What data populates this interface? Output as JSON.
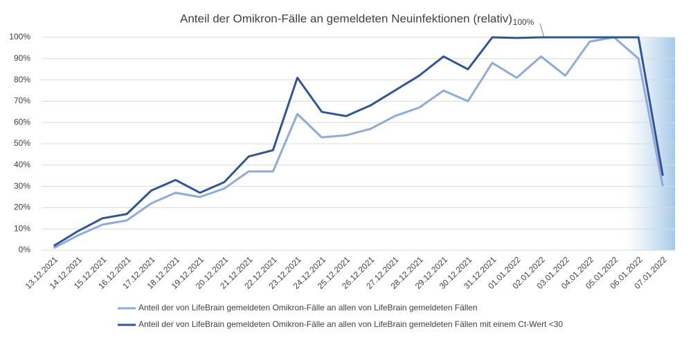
{
  "chart_data": {
    "type": "line",
    "title": "Anteil der Omikron-Fälle an gemeldeten Neuinfektionen (relativ)",
    "annotation": "100%",
    "categories": [
      "13.12.2021",
      "14.12.2021",
      "15.12.2021",
      "16.12.2021",
      "17.12.2021",
      "18.12.2021",
      "19.12.2021",
      "20.12.2021",
      "21.12.2021",
      "22.12.2021",
      "23.12.2021",
      "24.12.2021",
      "25.12.2021",
      "26.12.2021",
      "27.12.2021",
      "28.12.2021",
      "29.12.2021",
      "30.12.2021",
      "31.12.2021",
      "01.01.2022",
      "02.01.2022",
      "03.01.2022",
      "04.01.2022",
      "05.01.2022",
      "06.01.2022",
      "07.01.2022"
    ],
    "series": [
      {
        "name": "Anteil der von LifeBrain gemeldeten Omikron-Fälle an allen von LifeBrain gemeldeten Fällen",
        "color": "#8faadc",
        "values": [
          1,
          7,
          12,
          14,
          22,
          27,
          25,
          29,
          37,
          37,
          64,
          53,
          54,
          57,
          63,
          67,
          75,
          70,
          88,
          81,
          91,
          82,
          98,
          100,
          90,
          30
        ]
      },
      {
        "name": "Anteil der von LifeBrain gemeldeten Omikron-Fälle an allen von LifeBrain gemeldeten Fällen mit einem Ct-Wert <30",
        "color": "#2f5597",
        "values": [
          2,
          9,
          15,
          17,
          28,
          33,
          27,
          32,
          44,
          47,
          81,
          65,
          63,
          68,
          75,
          82,
          91,
          85,
          100,
          99.7,
          100,
          100,
          100,
          100,
          100,
          35
        ]
      }
    ],
    "ylim": [
      0,
      100
    ],
    "yticks": [
      {
        "value": 0,
        "label": "0%"
      },
      {
        "value": 10,
        "label": "10%"
      },
      {
        "value": 20,
        "label": "20%"
      },
      {
        "value": 30,
        "label": "30%"
      },
      {
        "value": 40,
        "label": "40%"
      },
      {
        "value": 50,
        "label": "50%"
      },
      {
        "value": 60,
        "label": "60%"
      },
      {
        "value": 70,
        "label": "70%"
      },
      {
        "value": 80,
        "label": "80%"
      },
      {
        "value": 90,
        "label": "90%"
      },
      {
        "value": 100,
        "label": "100%"
      }
    ],
    "grid": true
  }
}
